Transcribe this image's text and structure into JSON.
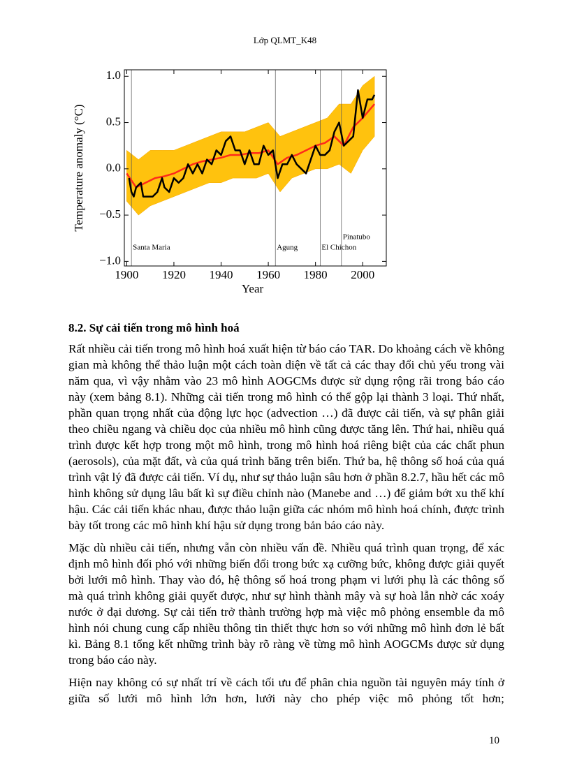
{
  "header": "Lớp QLMT_K48",
  "chart_data": {
    "type": "line",
    "xlabel": "Year",
    "ylabel": "Temperature anomaly (°C)",
    "xlim": [
      1899,
      2010
    ],
    "ylim": [
      -1.05,
      1.07
    ],
    "xticks": [
      1900,
      1920,
      1940,
      1960,
      1980,
      2000
    ],
    "yticks": [
      {
        "value": -1.0,
        "label": "−1.0"
      },
      {
        "value": -0.5,
        "label": "−0.5"
      },
      {
        "value": 0.0,
        "label": "0.0"
      },
      {
        "value": 0.5,
        "label": "0.5"
      },
      {
        "value": 1.0,
        "label": "1.0"
      }
    ],
    "band": {
      "color": "#ffc20e",
      "x": [
        1900,
        1905,
        1910,
        1915,
        1920,
        1925,
        1930,
        1935,
        1940,
        1945,
        1950,
        1955,
        1960,
        1965,
        1970,
        1975,
        1980,
        1985,
        1990,
        1995,
        2000,
        2005
      ],
      "low": [
        -0.35,
        -0.5,
        -0.4,
        -0.35,
        -0.3,
        -0.25,
        -0.2,
        -0.15,
        -0.15,
        -0.1,
        -0.1,
        -0.1,
        -0.05,
        -0.25,
        -0.1,
        -0.05,
        0.0,
        0.0,
        0.05,
        -0.05,
        0.2,
        0.35
      ],
      "high": [
        0.2,
        0.1,
        0.2,
        0.2,
        0.2,
        0.25,
        0.3,
        0.35,
        0.4,
        0.4,
        0.4,
        0.45,
        0.5,
        0.35,
        0.4,
        0.45,
        0.5,
        0.55,
        0.7,
        0.7,
        0.9,
        1.0
      ]
    },
    "series": [
      {
        "color": "#ff2a1a",
        "width": 2.5,
        "x": [
          1900,
          1904,
          1908,
          1912,
          1916,
          1920,
          1924,
          1928,
          1932,
          1936,
          1940,
          1944,
          1948,
          1952,
          1956,
          1960,
          1964,
          1968,
          1972,
          1976,
          1980,
          1984,
          1988,
          1992,
          1996,
          2000,
          2005
        ],
        "values": [
          -0.05,
          -0.2,
          -0.15,
          -0.1,
          -0.08,
          -0.05,
          0.0,
          0.05,
          0.08,
          0.1,
          0.12,
          0.15,
          0.15,
          0.17,
          0.17,
          0.2,
          0.05,
          0.12,
          0.15,
          0.2,
          0.25,
          0.28,
          0.35,
          0.25,
          0.45,
          0.55,
          0.7
        ]
      },
      {
        "color": "#000000",
        "width": 2.5,
        "x": [
          1901,
          1902,
          1903,
          1904,
          1906,
          1907,
          1909,
          1911,
          1913,
          1915,
          1916,
          1918,
          1920,
          1922,
          1924,
          1926,
          1928,
          1930,
          1932,
          1934,
          1936,
          1938,
          1940,
          1942,
          1944,
          1946,
          1948,
          1950,
          1952,
          1954,
          1956,
          1958,
          1960,
          1962,
          1964,
          1966,
          1968,
          1970,
          1972,
          1974,
          1976,
          1978,
          1980,
          1982,
          1984,
          1986,
          1988,
          1990,
          1992,
          1994,
          1996,
          1998,
          2000,
          2002,
          2004,
          2005
        ],
        "values": [
          -0.1,
          -0.25,
          -0.3,
          -0.2,
          -0.15,
          -0.3,
          -0.3,
          -0.3,
          -0.25,
          -0.1,
          -0.2,
          -0.25,
          -0.1,
          -0.15,
          -0.1,
          0.05,
          -0.05,
          0.05,
          -0.05,
          0.1,
          0.05,
          0.2,
          0.15,
          0.3,
          0.35,
          0.2,
          0.2,
          0.05,
          0.2,
          0.05,
          0.05,
          0.25,
          0.15,
          0.2,
          -0.1,
          0.05,
          0.05,
          0.15,
          0.05,
          0.0,
          -0.05,
          0.1,
          0.25,
          0.15,
          0.15,
          0.2,
          0.4,
          0.5,
          0.25,
          0.3,
          0.35,
          0.85,
          0.55,
          0.75,
          0.75,
          0.8
        ]
      }
    ],
    "annotations": [
      {
        "label": "Santa Maria",
        "x": 1902
      },
      {
        "label": "Agung",
        "x": 1963
      },
      {
        "label": "El Chichon",
        "x": 1982
      },
      {
        "label": "Pinatubo",
        "x": 1991
      }
    ]
  },
  "section_title": "8.2. Sự cải tiến trong mô hình hoá",
  "paragraphs": [
    "Rất nhiều cải tiến trong mô hình hoá xuất hiện từ báo cáo TAR. Do khoảng cách về không gian mà không thể thảo luận một cách toàn diện về tất cả các thay đổi chủ yếu trong vài năm qua, vì vậy nhằm vào 23 mô hình AOGCMs được sử dụng rộng rãi trong báo cáo này (xem bảng 8.1). Những cải tiến trong mô hình có thể gộp lại thành 3 loại. Thứ nhất, phần quan trọng nhất của động lực học (advection …) đã được cải tiến, và sự phân giải theo chiều ngang và chiều dọc của nhiều mô hình cũng được tăng lên. Thứ hai, nhiều quá trình được kết hợp trong một mô hình, trong mô hình hoá riêng biệt của các chất phun (aerosols), của mặt đất, và của quá trình băng trên biển. Thứ ba, hệ thông số hoá của quá trình vật lý đã được cải tiến. Ví dụ, như sự thảo luận sâu hơn ở phần 8.2.7, hầu hết các mô hình không sử dụng lâu bất kì sự điều chỉnh nào (Manebe and …) để giảm bớt xu thế khí hậu. Các cải tiến khác nhau, được thảo luận giữa các nhóm mô hình hoá chính, được trình bày tốt trong các mô hình khí hậu sử dụng trong bản báo cáo này.",
    "Mặc dù nhiều cải tiến, nhưng vẫn còn nhiều vấn đề. Nhiều quá trình quan trọng, để xác định mô hình đối phó với những biến đổi trong bức xạ cưỡng bức, không được giải quyết bởi lưới mô hình. Thay vào đó, hệ thông số hoá trong phạm vi lưới phụ là các thông số mà quá trình không giải quyết được, như sự hình thành mây và sự hoà lẫn nhờ các xoáy nước ở đại dương. Sự cải tiến trở thành trường hợp mà việc mô phỏng ensemble đa mô hình nói chung cung cấp nhiều thông tin thiết thực hơn so với những mô hình đơn lẻ bất kì. Bảng 8.1 tổng kết những trình bày rõ ràng về từng mô hình AOGCMs được sử dụng trong báo cáo này.",
    "Hiện nay không có sự nhất trí về cách tối ưu để phân chia nguồn tài nguyên máy tính ở giữa số lưới mô hình lớn hơn, lưới này cho phép việc mô phỏng tốt hơn;"
  ],
  "page_number": "10"
}
